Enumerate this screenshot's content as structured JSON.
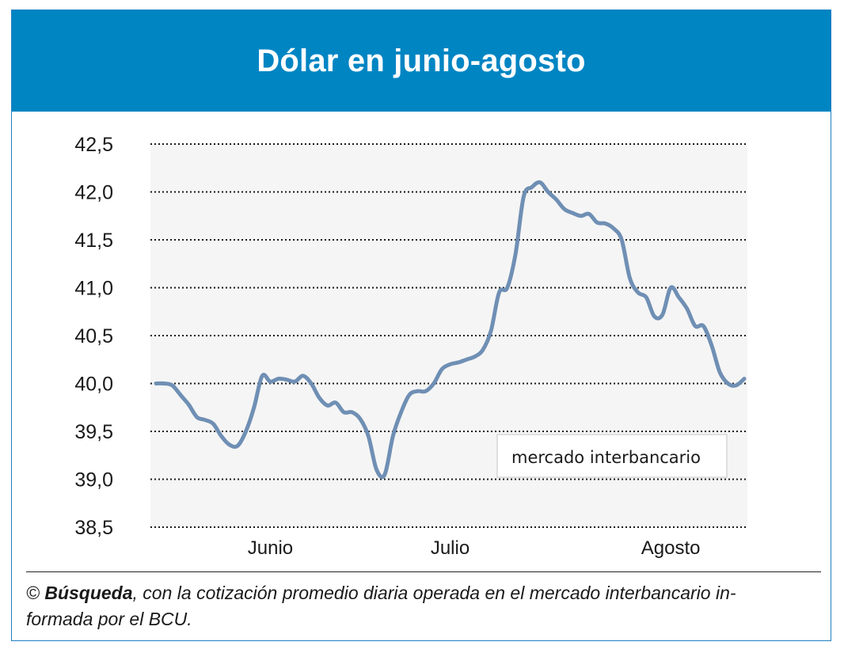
{
  "header": {
    "title": "Dólar en junio-agosto"
  },
  "colors": {
    "header_bg": "#0085c3",
    "line": "#6f8fb4",
    "plot_bg": "#f5f5f5"
  },
  "chart_data": {
    "type": "line",
    "title": "Dólar en junio-agosto",
    "xlabel": "",
    "ylabel": "",
    "ylim": [
      38.5,
      42.5
    ],
    "y_ticks": [
      "42,5",
      "42,0",
      "41,5",
      "41,0",
      "40,5",
      "40,0",
      "39,5",
      "39,0",
      "38,5"
    ],
    "y_tick_values": [
      42.5,
      42.0,
      41.5,
      41.0,
      40.5,
      40.0,
      39.5,
      39.0,
      38.5
    ],
    "x_ticks": [
      "Junio",
      "Julio",
      "Agosto"
    ],
    "x_tick_index": [
      14,
      36,
      63
    ],
    "grid": true,
    "legend": {
      "label": "mercado interbancario",
      "placement": "bottom-right"
    },
    "series": [
      {
        "values": [
          40.0,
          40.0,
          39.98,
          39.88,
          39.78,
          39.65,
          39.62,
          39.58,
          39.45,
          39.36,
          39.35,
          39.5,
          39.75,
          40.08,
          40.02,
          40.05,
          40.04,
          40.02,
          40.08,
          40.0,
          39.85,
          39.77,
          39.8,
          39.7,
          39.7,
          39.63,
          39.45,
          39.1,
          39.05,
          39.45,
          39.7,
          39.88,
          39.92,
          39.92,
          40.0,
          40.15,
          40.2,
          40.22,
          40.25,
          40.28,
          40.35,
          40.55,
          40.95,
          41.0,
          41.35,
          41.95,
          42.05,
          42.1,
          42.0,
          41.92,
          41.82,
          41.78,
          41.75,
          41.77,
          41.68,
          41.67,
          41.62,
          41.5,
          41.1,
          40.95,
          40.9,
          40.7,
          40.72,
          41.0,
          40.9,
          40.78,
          40.6,
          40.6,
          40.4,
          40.12,
          40.0,
          39.98,
          40.05
        ]
      }
    ]
  },
  "footer": {
    "copyright": "©",
    "source": "Búsqueda",
    "text_line1": ", con la cotización promedio diaria operada en el mercado interbancario in-",
    "text_line2": "formada por el BCU."
  }
}
